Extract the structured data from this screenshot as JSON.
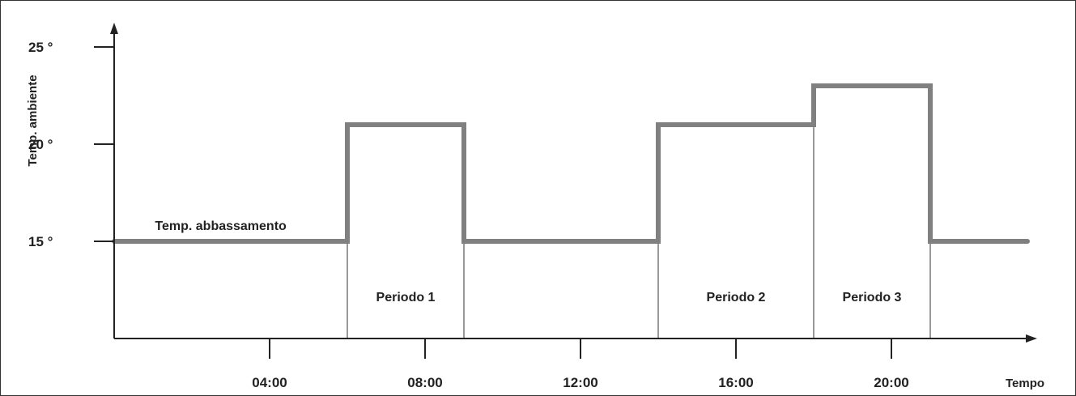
{
  "chart_data": {
    "type": "line",
    "step": true,
    "title": "",
    "ylabel": "Temp. ambiente",
    "xlabel": "Tempo",
    "y_unit": "°",
    "ylim": [
      10,
      26
    ],
    "xlim_hours": [
      0,
      23.5
    ],
    "y_ticks": [
      {
        "value": 15,
        "label": "15 °"
      },
      {
        "value": 20,
        "label": "20 °"
      },
      {
        "value": 25,
        "label": "25 °"
      }
    ],
    "x_ticks": [
      {
        "value": 4,
        "label": "04:00"
      },
      {
        "value": 8,
        "label": "08:00"
      },
      {
        "value": 12,
        "label": "12:00"
      },
      {
        "value": 16,
        "label": "16:00"
      },
      {
        "value": 20,
        "label": "20:00"
      }
    ],
    "series": [
      {
        "color": "#808080",
        "points": [
          {
            "x": 0,
            "y": 15
          },
          {
            "x": 6,
            "y": 15
          },
          {
            "x": 6,
            "y": 21
          },
          {
            "x": 9,
            "y": 21
          },
          {
            "x": 9,
            "y": 15
          },
          {
            "x": 14,
            "y": 15
          },
          {
            "x": 14,
            "y": 21
          },
          {
            "x": 18,
            "y": 21
          },
          {
            "x": 18,
            "y": 23
          },
          {
            "x": 21,
            "y": 23
          },
          {
            "x": 21,
            "y": 15
          },
          {
            "x": 23.5,
            "y": 15
          }
        ]
      }
    ],
    "boundaries": [
      6,
      9,
      14,
      18,
      21
    ],
    "annotations": [
      {
        "text": "Temp. abbassamento",
        "x": 3,
        "y": 15
      },
      {
        "text": "Periodo  1",
        "x": 7.5,
        "y": 12.5
      },
      {
        "text": "Periodo  2",
        "x": 16,
        "y": 12.5
      },
      {
        "text": "Periodo  3",
        "x": 19.5,
        "y": 12.5
      }
    ],
    "grid": false,
    "colors": {
      "line": "#808080",
      "axis": "#222222",
      "boundary": "#555555"
    }
  }
}
